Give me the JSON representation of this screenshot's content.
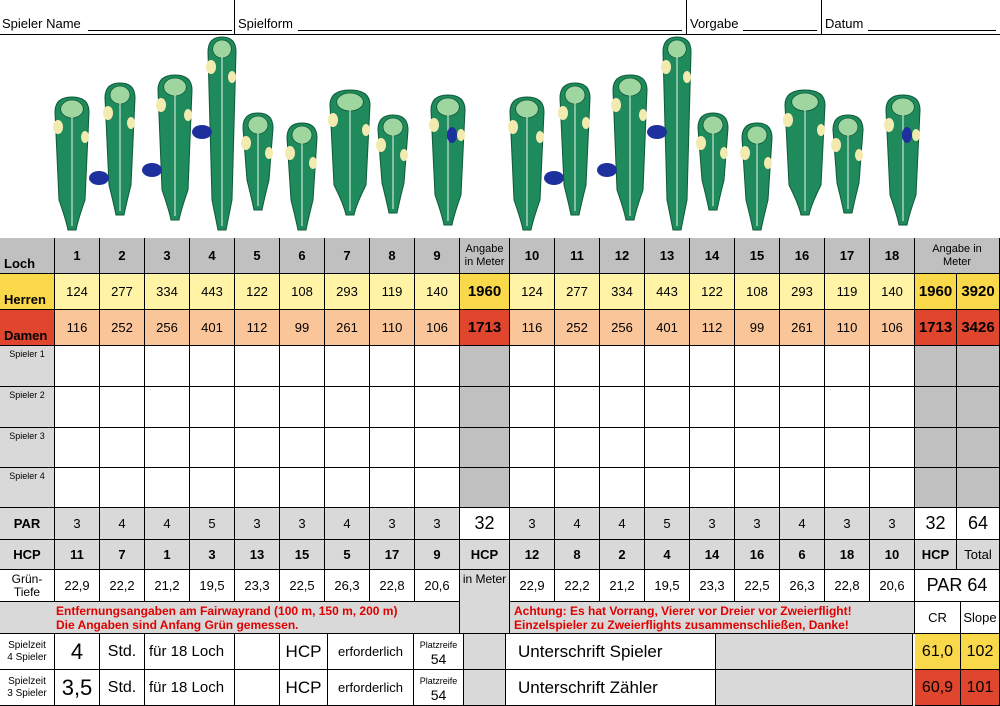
{
  "header": {
    "player_name_label": "Spieler Name",
    "game_form_label": "Spielform",
    "handicap_label": "Vorgabe",
    "date_label": "Datum"
  },
  "labels": {
    "hole": "Loch",
    "info_meters": "Angabe in Meter",
    "men": "Herren",
    "women": "Damen",
    "par": "PAR",
    "hcp": "HCP",
    "total": "Total",
    "green_depth": "Grün-Tiefe",
    "in_meters": "in Meter",
    "par_total_text": "PAR 64",
    "cr": "CR",
    "slope": "Slope"
  },
  "players": [
    "Spieler 1",
    "Spieler 2",
    "Spieler 3",
    "Spieler 4"
  ],
  "front": {
    "holes": [
      "1",
      "2",
      "3",
      "4",
      "5",
      "6",
      "7",
      "8",
      "9"
    ],
    "men": [
      "124",
      "277",
      "334",
      "443",
      "122",
      "108",
      "293",
      "119",
      "140"
    ],
    "women": [
      "116",
      "252",
      "256",
      "401",
      "112",
      "99",
      "261",
      "110",
      "106"
    ],
    "par": [
      "3",
      "4",
      "4",
      "5",
      "3",
      "3",
      "4",
      "3",
      "3"
    ],
    "hcp": [
      "11",
      "7",
      "1",
      "3",
      "13",
      "15",
      "5",
      "17",
      "9"
    ],
    "depth": [
      "22,9",
      "22,2",
      "21,2",
      "19,5",
      "23,3",
      "22,5",
      "26,3",
      "22,8",
      "20,6"
    ],
    "men_sum": "1960",
    "women_sum": "1713",
    "par_sum": "32"
  },
  "back": {
    "holes": [
      "10",
      "11",
      "12",
      "13",
      "14",
      "15",
      "16",
      "17",
      "18"
    ],
    "men": [
      "124",
      "277",
      "334",
      "443",
      "122",
      "108",
      "293",
      "119",
      "140"
    ],
    "women": [
      "116",
      "252",
      "256",
      "401",
      "112",
      "99",
      "261",
      "110",
      "106"
    ],
    "par": [
      "3",
      "4",
      "4",
      "5",
      "3",
      "3",
      "4",
      "3",
      "3"
    ],
    "hcp": [
      "12",
      "8",
      "2",
      "4",
      "14",
      "16",
      "6",
      "18",
      "10"
    ],
    "depth": [
      "22,9",
      "22,2",
      "21,2",
      "19,5",
      "23,3",
      "22,5",
      "26,3",
      "22,8",
      "20,6"
    ],
    "men_sum": "1960",
    "women_sum": "1713",
    "par_sum": "32"
  },
  "totals": {
    "men_total": "3920",
    "women_total": "3426",
    "par_total": "64",
    "cr_men": "61,0",
    "slope_men": "102",
    "cr_women": "60,9",
    "slope_women": "101"
  },
  "notes": {
    "left_line1": "Entfernungsangaben am Fairwayrand (100 m, 150 m, 200 m)",
    "left_line2": "Die Angaben sind Anfang Grün gemessen.",
    "right_line1": "Achtung: Es hat Vorrang, Vierer vor Dreier vor Zweierflight!",
    "right_line2": "Einzelspieler zu Zweierflights zusammenschließen, Danke!"
  },
  "playtime": [
    {
      "label1": "Spielzeit",
      "label2": "4 Spieler",
      "hours": "4",
      "std": "Std.",
      "for": "für 18 Loch",
      "hcp": "HCP",
      "required": "erforderlich",
      "platzreife": "Platzreife",
      "platzreife_val": "54",
      "signature": "Unterschrift Spieler"
    },
    {
      "label1": "Spielzeit",
      "label2": "3 Spieler",
      "hours": "3,5",
      "std": "Std.",
      "for": "für 18 Loch",
      "hcp": "HCP",
      "required": "erforderlich",
      "platzreife": "Platzreife",
      "platzreife_val": "54",
      "signature": "Unterschrift Zähler"
    }
  ],
  "colors": {
    "fairway": "#1f8a5b",
    "green": "#9fd6a0",
    "bunker": "#f3eab0",
    "water": "#1e2f9e",
    "men_row": "#fff3a6",
    "women_row": "#fbc59a",
    "men_sum": "#f9d84a",
    "women_sum": "#e0452e"
  }
}
